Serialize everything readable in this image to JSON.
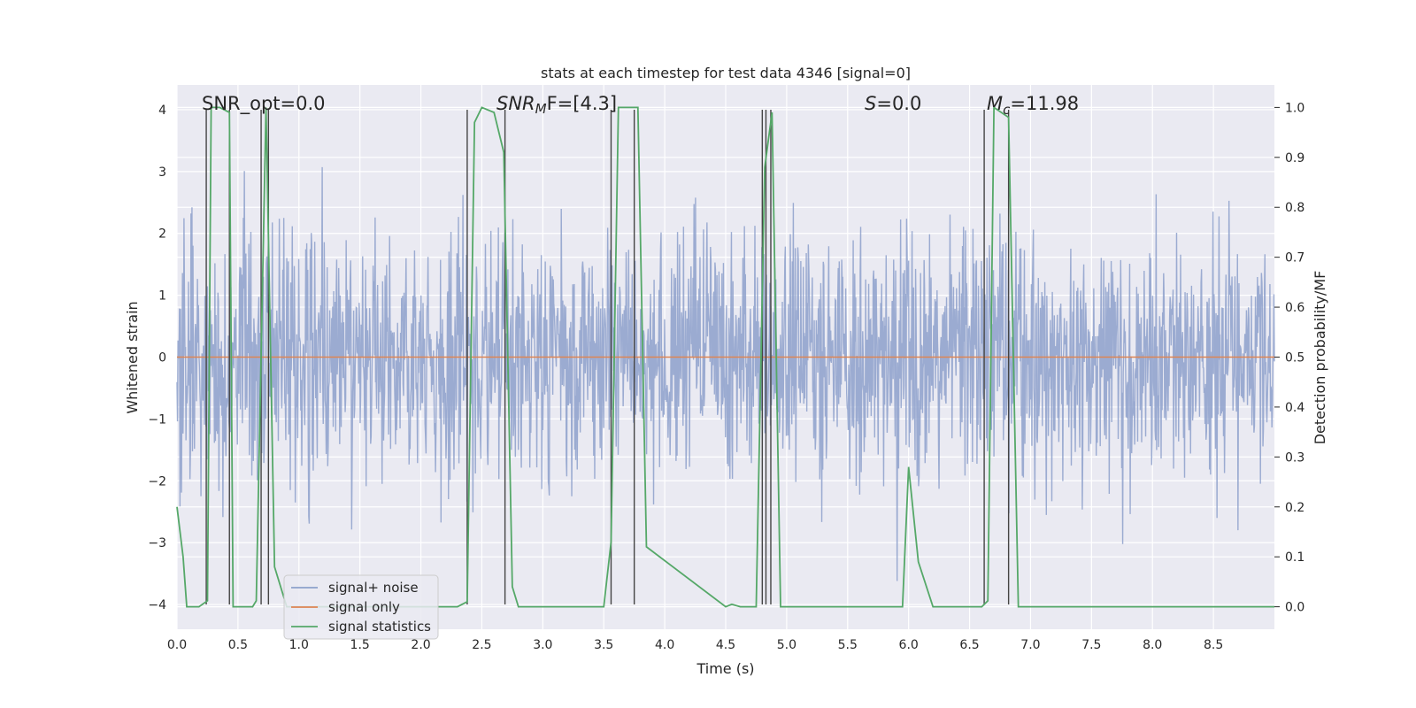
{
  "chart_data": {
    "type": "line",
    "title": "stats at each timestep for test data 4346 [signal=0]",
    "xlabel": "Time (s)",
    "ylabel_left": "Whitened strain",
    "ylabel_right": "Detection probability/MF",
    "xlim": [
      0,
      9.0
    ],
    "ylim_left": [
      -4.4,
      4.4
    ],
    "ylim_right": [
      -0.045,
      1.045
    ],
    "xticks": [
      "0.0",
      "0.5",
      "1.0",
      "1.5",
      "2.0",
      "2.5",
      "3.0",
      "3.5",
      "4.0",
      "4.5",
      "5.0",
      "5.5",
      "6.0",
      "6.5",
      "7.0",
      "7.5",
      "8.0",
      "8.5"
    ],
    "yticks_left": [
      "−4",
      "−3",
      "−2",
      "−1",
      "0",
      "1",
      "2",
      "3",
      "4"
    ],
    "yticks_right": [
      "0.0",
      "0.1",
      "0.2",
      "0.3",
      "0.4",
      "0.5",
      "0.6",
      "0.7",
      "0.8",
      "0.9",
      "1.0"
    ],
    "annotations": {
      "snr_opt": "SNR_opt=0.0",
      "snr_mf_sym": "SNR",
      "snr_mf_sub": "M",
      "snr_mf_rest": "F=[4.3]",
      "s_sym": "S",
      "s_rest": "=0.0",
      "mc_sym": "M",
      "mc_sub": "c",
      "mc_rest": "=11.98"
    },
    "legend": [
      "signal+ noise",
      "signal only",
      "signal statistics"
    ],
    "colors": {
      "noise": "#8da0cb",
      "signal": "#dd8452",
      "stats": "#55a868",
      "vlines": "#444444",
      "background": "#eaeaf2",
      "grid": "#ffffff"
    },
    "noise_envelope": {
      "amplitude_std": 1.0,
      "samples": 2200,
      "seed": 4346
    },
    "series": [
      {
        "name": "signal statistics",
        "x": [
          0.0,
          0.05,
          0.08,
          0.18,
          0.25,
          0.28,
          0.33,
          0.35,
          0.43,
          0.46,
          0.5,
          0.62,
          0.65,
          0.73,
          0.8,
          0.9,
          1.0,
          2.3,
          2.38,
          2.44,
          2.5,
          2.6,
          2.68,
          2.75,
          2.8,
          3.5,
          3.56,
          3.62,
          3.7,
          3.78,
          3.85,
          4.5,
          4.55,
          4.62,
          4.75,
          4.82,
          4.88,
          4.95,
          5.0,
          5.95,
          6.0,
          6.08,
          6.2,
          6.6,
          6.65,
          6.7,
          6.82,
          6.9,
          9.0
        ],
        "y": [
          0.2,
          0.1,
          0.0,
          0.0,
          0.012,
          1.0,
          1.0,
          1.0,
          0.99,
          0.0,
          0.0,
          0.0,
          0.012,
          1.0,
          0.08,
          0.0,
          0.0,
          0.0,
          0.01,
          0.97,
          1.0,
          0.99,
          0.91,
          0.04,
          0.0,
          0.0,
          0.13,
          1.0,
          1.0,
          1.0,
          0.12,
          0.0,
          0.005,
          0.0,
          0.0,
          0.88,
          0.99,
          0.0,
          0.0,
          0.0,
          0.28,
          0.09,
          0.0,
          0.0,
          0.012,
          1.0,
          0.98,
          0.0,
          0.0
        ]
      }
    ],
    "vlines": [
      0.24,
      0.43,
      0.69,
      0.75,
      2.38,
      2.69,
      3.56,
      3.75,
      4.8,
      4.83,
      4.87,
      6.62,
      6.82
    ]
  }
}
